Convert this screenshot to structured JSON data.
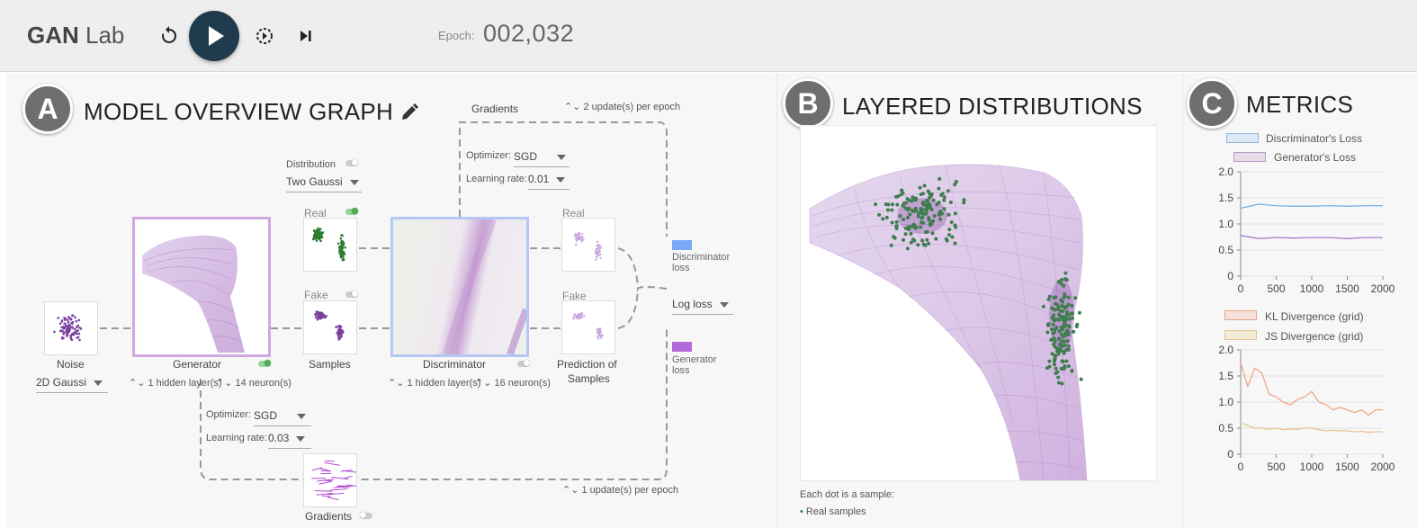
{
  "header": {
    "app_name_bold": "GAN",
    "app_name_rest": " Lab",
    "epoch_label": "Epoch:",
    "epoch_value": "002,032"
  },
  "colors": {
    "header_bg": "#eeeeee",
    "play_bg": "#1f3b4d",
    "real_green": "#2e7d32",
    "fake_purple": "#7b3f9e",
    "disc_loss": "#7aa7f7",
    "gen_loss": "#b36ad8"
  },
  "section_a": {
    "badge": "A",
    "title": "MODEL OVERVIEW GRAPH",
    "gradients_top": "Gradients",
    "updates_top": "2 update(s) per epoch",
    "disc_optimizer_label": "Optimizer:",
    "disc_optimizer_value": "SGD",
    "disc_lr_label": "Learning rate:",
    "disc_lr_value": "0.01",
    "distribution_label": "Distribution",
    "distribution_value": "Two Gaussi",
    "real_label": "Real",
    "fake_label": "Fake",
    "noise_label": "Noise",
    "noise_value": "2D Gaussi",
    "generator_label": "Generator",
    "gen_hidden": "1 hidden layer(s)",
    "gen_neurons": "14 neuron(s)",
    "samples_label": "Samples",
    "discriminator_label": "Discriminator",
    "disc_hidden": "1 hidden layer(s)",
    "disc_neurons": "16 neuron(s)",
    "pred_real": "Real",
    "pred_fake": "Fake",
    "prediction_label_1": "Prediction of",
    "prediction_label_2": "Samples",
    "disc_loss_1": "Discriminator",
    "disc_loss_2": "loss",
    "loss_type": "Log loss",
    "gen_loss_1": "Generator",
    "gen_loss_2": "loss",
    "gen_optimizer_label": "Optimizer:",
    "gen_optimizer_value": "SGD",
    "gen_lr_label": "Learning rate:",
    "gen_lr_value": "0.03",
    "updates_bottom": "1 update(s) per epoch",
    "gradients_bottom": "Gradients"
  },
  "section_b": {
    "badge": "B",
    "title": "LAYERED DISTRIBUTIONS",
    "caption": "Each dot is a sample:",
    "legend_real": "Real samples"
  },
  "section_c": {
    "badge": "C",
    "title": "METRICS",
    "chart_data": [
      {
        "type": "line",
        "x": [
          0,
          250,
          500,
          750,
          1000,
          1250,
          1500,
          1750,
          2000
        ],
        "series": [
          {
            "name": "Discriminator's Loss",
            "color": "#6fa8dc",
            "values": [
              1.3,
              1.38,
              1.35,
              1.34,
              1.34,
              1.35,
              1.34,
              1.35,
              1.35
            ]
          },
          {
            "name": "Generator's Loss",
            "color": "#a070c0",
            "values": [
              0.78,
              0.72,
              0.74,
              0.73,
              0.74,
              0.74,
              0.72,
              0.74,
              0.74
            ]
          }
        ],
        "ylim": [
          0,
          2.0
        ],
        "yticks": [
          "0",
          "0.5",
          "1.0",
          "1.5",
          "2.0"
        ],
        "xticks": [
          "0",
          "500",
          "1000",
          "1500",
          "2000"
        ]
      },
      {
        "type": "line",
        "x": [
          0,
          100,
          200,
          300,
          400,
          500,
          600,
          700,
          800,
          900,
          1000,
          1100,
          1200,
          1300,
          1400,
          1500,
          1600,
          1700,
          1800,
          1900,
          2000
        ],
        "series": [
          {
            "name": "KL Divergence (grid)",
            "color": "#f0a080",
            "values": [
              1.75,
              1.3,
              1.65,
              1.55,
              1.15,
              1.1,
              1.0,
              0.95,
              1.05,
              1.1,
              1.2,
              1.0,
              0.95,
              0.85,
              0.9,
              0.85,
              0.8,
              0.85,
              0.75,
              0.85,
              0.85
            ]
          },
          {
            "name": "JS Divergence (grid)",
            "color": "#e8c08a",
            "values": [
              0.6,
              0.55,
              0.5,
              0.5,
              0.48,
              0.5,
              0.47,
              0.48,
              0.48,
              0.5,
              0.5,
              0.47,
              0.45,
              0.46,
              0.45,
              0.45,
              0.43,
              0.44,
              0.42,
              0.43,
              0.43
            ]
          }
        ],
        "ylim": [
          0,
          2.0
        ],
        "yticks": [
          "0",
          "0.5",
          "1.0",
          "1.5",
          "2.0"
        ],
        "xticks": [
          "0",
          "500",
          "1000",
          "1500",
          "2000"
        ]
      }
    ]
  }
}
